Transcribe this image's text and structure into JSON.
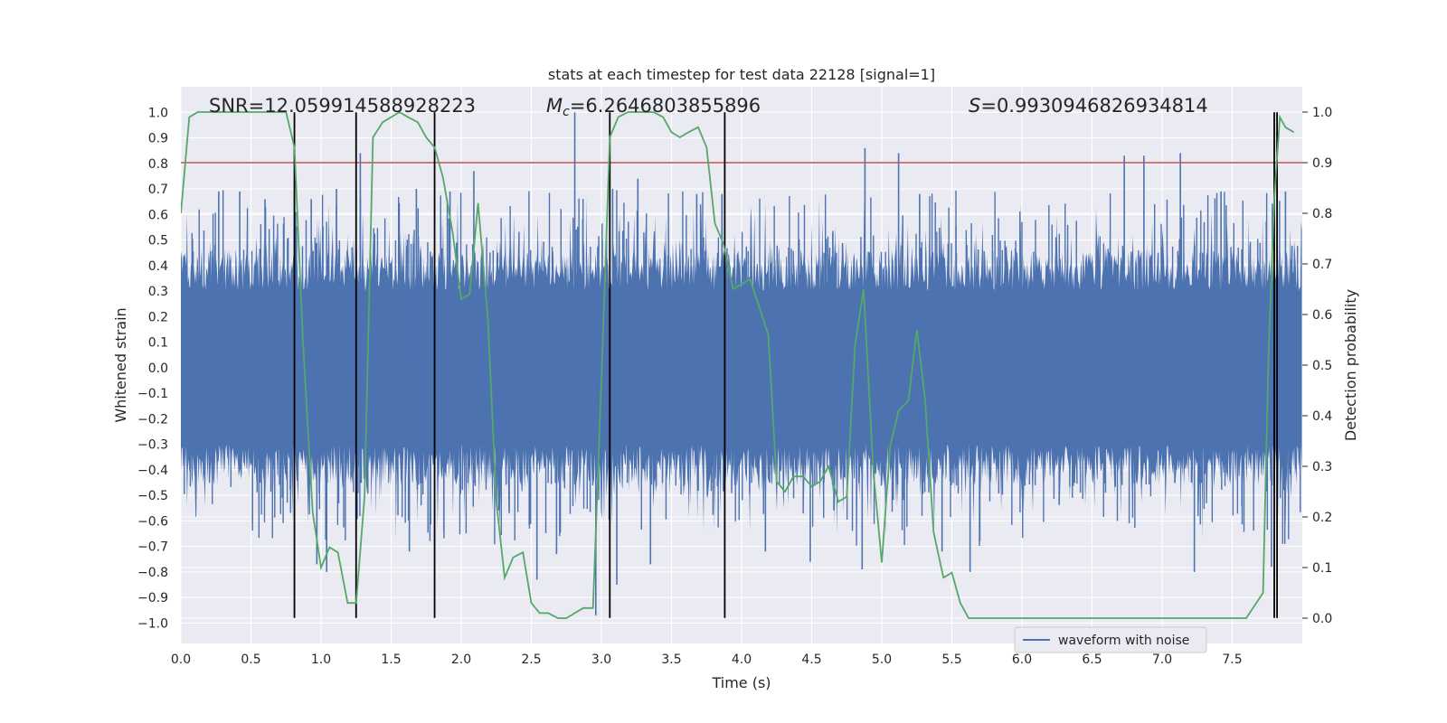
{
  "chart_data": {
    "type": "line",
    "title": "stats at each timestep for test data 22128 [signal=1]",
    "xlabel": "Time (s)",
    "ylabel_left": "Whitened strain",
    "ylabel_right": "Detection probability",
    "xlim": [
      0.0,
      8.0
    ],
    "ylim_left": [
      -1.08,
      1.1
    ],
    "ylim_right": [
      -0.05,
      1.05
    ],
    "x_ticks": [
      0.0,
      0.5,
      1.0,
      1.5,
      2.0,
      2.5,
      3.0,
      3.5,
      4.0,
      4.5,
      5.0,
      5.5,
      6.0,
      6.5,
      7.0,
      7.5
    ],
    "x_tick_labels": [
      "0.0",
      "0.5",
      "1.0",
      "1.5",
      "2.0",
      "2.5",
      "3.0",
      "3.5",
      "4.0",
      "4.5",
      "5.0",
      "5.5",
      "6.0",
      "6.5",
      "7.0",
      "7.5"
    ],
    "left_ticks": [
      -1.0,
      -0.9,
      -0.8,
      -0.7,
      -0.6,
      -0.5,
      -0.4,
      -0.3,
      -0.2,
      -0.1,
      0.0,
      0.1,
      0.2,
      0.3,
      0.4,
      0.5,
      0.6,
      0.7,
      0.8,
      0.9,
      1.0
    ],
    "left_tick_labels": [
      "−1.0",
      "−0.9",
      "−0.8",
      "−0.7",
      "−0.6",
      "−0.5",
      "−0.4",
      "−0.3",
      "−0.2",
      "−0.1",
      "0.0",
      "0.1",
      "0.2",
      "0.3",
      "0.4",
      "0.5",
      "0.6",
      "0.7",
      "0.8",
      "0.9",
      "1.0"
    ],
    "right_ticks": [
      0.0,
      0.1,
      0.2,
      0.3,
      0.4,
      0.5,
      0.6,
      0.7,
      0.8,
      0.9,
      1.0
    ],
    "right_tick_labels": [
      "0.0",
      "0.1",
      "0.2",
      "0.3",
      "0.4",
      "0.5",
      "0.6",
      "0.7",
      "0.8",
      "0.9",
      "1.0"
    ],
    "grid": true,
    "legend": {
      "placement": "lower-center-right",
      "entries": [
        "waveform with noise"
      ]
    },
    "annotations": {
      "snr": "SNR=12.059914588928223",
      "mc_symbol": "M",
      "mc_subscript": "c",
      "mc_value": "=6.2646803855896",
      "s_symbol": "S",
      "s_value": "=0.9930946826934814"
    },
    "threshold": {
      "axis": "right",
      "value": 0.9,
      "color": "#c44e52"
    },
    "vertical_markers": [
      0.81,
      1.25,
      1.81,
      3.06,
      3.88,
      7.8,
      7.82
    ],
    "vertical_marker_range_left": [
      -0.98,
      1.0
    ],
    "series": [
      {
        "axis": "left",
        "kind": "noise",
        "name": "waveform with noise",
        "color": "#4c72b0",
        "envelope_upper": [
          0.3,
          0.85,
          0.3
        ],
        "envelope_lower": [
          -0.3,
          -0.97,
          -0.3
        ],
        "peaks": [
          [
            0.27,
            0.69
          ],
          [
            0.42,
            0.69
          ],
          [
            0.6,
            0.66
          ],
          [
            0.81,
            0.68
          ],
          [
            0.93,
            0.66
          ],
          [
            1.11,
            0.7
          ],
          [
            1.28,
            0.84
          ],
          [
            1.68,
            0.7
          ],
          [
            1.92,
            0.69
          ],
          [
            2.09,
            0.77
          ],
          [
            2.81,
            1.0
          ],
          [
            3.08,
            0.7
          ],
          [
            3.26,
            0.74
          ],
          [
            3.68,
            0.68
          ],
          [
            3.86,
            0.68
          ],
          [
            4.88,
            0.86
          ],
          [
            5.12,
            0.84
          ],
          [
            5.27,
            0.68
          ],
          [
            6.73,
            0.83
          ],
          [
            6.87,
            0.83
          ],
          [
            7.13,
            0.84
          ],
          [
            7.42,
            0.69
          ],
          [
            7.88,
            0.69
          ],
          [
            0.97,
            -0.77
          ],
          [
            1.04,
            -0.8
          ],
          [
            1.63,
            -0.72
          ],
          [
            2.54,
            -0.83
          ],
          [
            2.68,
            -0.73
          ],
          [
            2.96,
            -0.97
          ],
          [
            3.11,
            -0.85
          ],
          [
            3.35,
            -0.77
          ],
          [
            4.17,
            -0.72
          ],
          [
            4.49,
            -0.76
          ],
          [
            4.86,
            -0.79
          ],
          [
            5.43,
            -0.72
          ],
          [
            5.63,
            -0.8
          ],
          [
            7.23,
            -0.8
          ],
          [
            7.78,
            -0.78
          ]
        ]
      },
      {
        "axis": "right",
        "kind": "line",
        "color": "#55a868",
        "x": [
          0.0,
          0.06,
          0.12,
          0.2,
          0.3,
          0.4,
          0.5,
          0.6,
          0.7,
          0.75,
          0.81,
          0.87,
          0.94,
          1.0,
          1.06,
          1.12,
          1.19,
          1.25,
          1.31,
          1.37,
          1.44,
          1.5,
          1.56,
          1.62,
          1.69,
          1.75,
          1.81,
          1.87,
          1.94,
          2.0,
          2.06,
          2.12,
          2.19,
          2.25,
          2.31,
          2.37,
          2.44,
          2.5,
          2.56,
          2.62,
          2.69,
          2.75,
          2.81,
          2.87,
          2.94,
          3.0,
          3.06,
          3.12,
          3.19,
          3.25,
          3.31,
          3.37,
          3.44,
          3.5,
          3.56,
          3.62,
          3.69,
          3.75,
          3.81,
          3.87,
          3.94,
          4.0,
          4.06,
          4.12,
          4.19,
          4.25,
          4.31,
          4.37,
          4.44,
          4.5,
          4.56,
          4.62,
          4.69,
          4.75,
          4.81,
          4.87,
          4.94,
          5.0,
          5.06,
          5.12,
          5.19,
          5.25,
          5.31,
          5.37,
          5.44,
          5.5,
          5.56,
          5.62,
          5.69,
          5.75,
          5.81,
          5.87,
          5.94,
          6.0,
          6.2,
          6.4,
          6.6,
          6.8,
          6.9,
          7.0,
          7.1,
          7.2,
          7.4,
          7.6,
          7.72,
          7.76,
          7.8,
          7.84,
          7.88,
          7.94
        ],
        "y": [
          0.8,
          0.99,
          1.0,
          1.0,
          1.0,
          1.0,
          1.0,
          1.0,
          1.0,
          1.0,
          0.93,
          0.55,
          0.21,
          0.1,
          0.14,
          0.13,
          0.03,
          0.03,
          0.24,
          0.95,
          0.98,
          0.99,
          1.0,
          0.99,
          0.98,
          0.95,
          0.93,
          0.87,
          0.76,
          0.63,
          0.64,
          0.82,
          0.59,
          0.23,
          0.08,
          0.12,
          0.13,
          0.03,
          0.01,
          0.01,
          0.0,
          0.0,
          0.01,
          0.02,
          0.02,
          0.47,
          0.95,
          0.99,
          1.0,
          1.0,
          1.0,
          1.0,
          0.99,
          0.96,
          0.95,
          0.96,
          0.97,
          0.93,
          0.78,
          0.74,
          0.65,
          0.66,
          0.67,
          0.62,
          0.56,
          0.27,
          0.25,
          0.28,
          0.28,
          0.26,
          0.27,
          0.3,
          0.23,
          0.24,
          0.54,
          0.65,
          0.29,
          0.11,
          0.34,
          0.41,
          0.43,
          0.57,
          0.43,
          0.17,
          0.08,
          0.09,
          0.03,
          0.0,
          0.0,
          0.0,
          0.0,
          0.0,
          0.0,
          0.0,
          0.0,
          0.0,
          0.0,
          0.0,
          0.0,
          0.0,
          0.0,
          0.0,
          0.0,
          0.0,
          0.05,
          0.53,
          0.83,
          0.99,
          0.97,
          0.96
        ]
      }
    ]
  }
}
